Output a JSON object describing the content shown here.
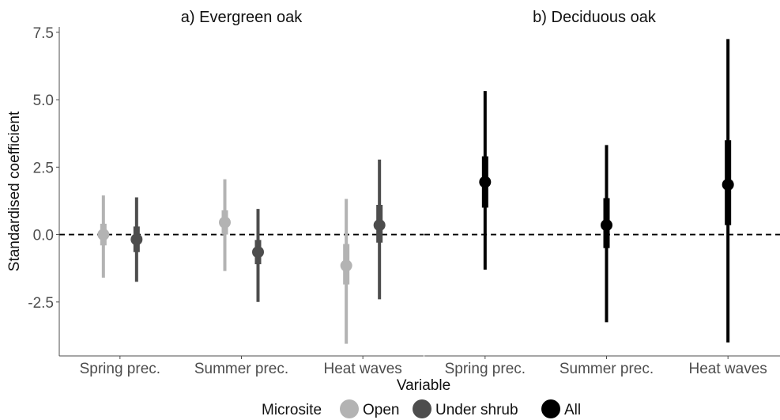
{
  "chart_data": {
    "type": "scatter",
    "subtype": "point-range",
    "ylabel": "Standardised coefficient",
    "xlabel": "Variable",
    "ylim": [
      -4.5,
      7.7
    ],
    "yticks": [
      -2.5,
      0.0,
      2.5,
      5.0,
      7.5
    ],
    "ytick_labels": [
      "-2.5",
      "0.0",
      "2.5",
      "5.0",
      "7.5"
    ],
    "reference_line": {
      "y": 0,
      "style": "dashed"
    },
    "legend": {
      "title": "Microsite",
      "position": "bottom",
      "items": [
        {
          "label": "Open",
          "color": "#b3b3b3"
        },
        {
          "label": "Under shrub",
          "color": "#4d4d4d"
        },
        {
          "label": "All",
          "color": "#000000"
        }
      ]
    },
    "panels": [
      {
        "title": "a) Evergreen oak",
        "categories": [
          "Spring prec.",
          "Summer prec.",
          "Heat waves"
        ],
        "series": [
          {
            "name": "Open",
            "color": "#b3b3b3",
            "points": [
              {
                "category": "Spring prec.",
                "y": 0.0,
                "inner": [
                  -0.4,
                  0.4
                ],
                "outer": [
                  -1.6,
                  1.45
                ]
              },
              {
                "category": "Summer prec.",
                "y": 0.45,
                "inner": [
                  0.0,
                  0.9
                ],
                "outer": [
                  -1.35,
                  2.05
                ]
              },
              {
                "category": "Heat waves",
                "y": -1.15,
                "inner": [
                  -1.85,
                  -0.35
                ],
                "outer": [
                  -4.05,
                  1.32
                ]
              }
            ]
          },
          {
            "name": "Under shrub",
            "color": "#4d4d4d",
            "points": [
              {
                "category": "Spring prec.",
                "y": -0.18,
                "inner": [
                  -0.65,
                  0.3
                ],
                "outer": [
                  -1.75,
                  1.38
                ]
              },
              {
                "category": "Summer prec.",
                "y": -0.65,
                "inner": [
                  -1.1,
                  -0.2
                ],
                "outer": [
                  -2.5,
                  0.95
                ]
              },
              {
                "category": "Heat waves",
                "y": 0.35,
                "inner": [
                  -0.3,
                  1.1
                ],
                "outer": [
                  -2.4,
                  2.78
                ]
              }
            ]
          }
        ]
      },
      {
        "title": "b) Deciduous oak",
        "categories": [
          "Spring prec.",
          "Summer prec.",
          "Heat waves"
        ],
        "series": [
          {
            "name": "All",
            "color": "#000000",
            "points": [
              {
                "category": "Spring prec.",
                "y": 1.95,
                "inner": [
                  1.0,
                  2.9
                ],
                "outer": [
                  -1.3,
                  5.32
                ]
              },
              {
                "category": "Summer prec.",
                "y": 0.35,
                "inner": [
                  -0.5,
                  1.35
                ],
                "outer": [
                  -3.25,
                  3.32
                ]
              },
              {
                "category": "Heat waves",
                "y": 1.85,
                "inner": [
                  0.35,
                  3.5
                ],
                "outer": [
                  -4.0,
                  7.25
                ]
              }
            ]
          }
        ]
      }
    ]
  }
}
